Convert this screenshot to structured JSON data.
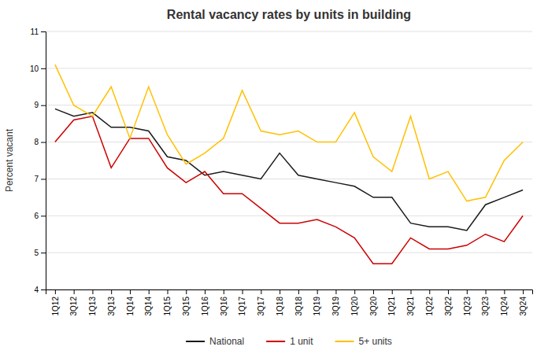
{
  "chart_data": {
    "type": "line",
    "title": "Rental vacancy rates by units in building",
    "ylabel": "Percent vacant",
    "categories": [
      "1Q12",
      "3Q12",
      "1Q13",
      "3Q13",
      "1Q14",
      "3Q14",
      "1Q15",
      "3Q15",
      "1Q16",
      "3Q16",
      "1Q17",
      "3Q17",
      "1Q18",
      "3Q18",
      "1Q19",
      "3Q19",
      "1Q20",
      "3Q20",
      "1Q21",
      "3Q21",
      "1Q22",
      "3Q22",
      "1Q23",
      "3Q23",
      "1Q24",
      "3Q24"
    ],
    "series": [
      {
        "name": "National",
        "color": "#1a1a1a",
        "values": [
          8.9,
          8.7,
          8.8,
          8.4,
          8.4,
          8.3,
          7.6,
          7.5,
          7.1,
          7.2,
          7.1,
          7.0,
          7.7,
          7.1,
          7.0,
          6.9,
          6.8,
          6.5,
          6.5,
          5.8,
          5.7,
          5.7,
          5.6,
          6.3,
          6.5,
          6.7
        ]
      },
      {
        "name": "1 unit",
        "color": "#cc0000",
        "values": [
          8.0,
          8.6,
          8.7,
          7.3,
          8.1,
          8.1,
          7.3,
          6.9,
          7.2,
          6.6,
          6.6,
          6.2,
          5.8,
          5.8,
          5.9,
          5.7,
          5.4,
          4.7,
          4.7,
          5.4,
          5.1,
          5.1,
          5.2,
          5.5,
          5.3,
          6.0
        ]
      },
      {
        "name": "5+ units",
        "color": "#ffc000",
        "values": [
          10.1,
          9.0,
          8.7,
          9.5,
          8.1,
          9.5,
          8.2,
          7.4,
          7.7,
          8.1,
          9.4,
          8.3,
          8.2,
          8.3,
          8.0,
          8.0,
          8.8,
          7.6,
          7.2,
          8.7,
          7.0,
          7.2,
          6.4,
          6.5,
          7.5,
          8.0
        ]
      }
    ],
    "ylim": [
      4,
      11
    ],
    "yticks": [
      4,
      5,
      6,
      7,
      8,
      9,
      10,
      11
    ],
    "grid": true,
    "legend": "bottom"
  }
}
